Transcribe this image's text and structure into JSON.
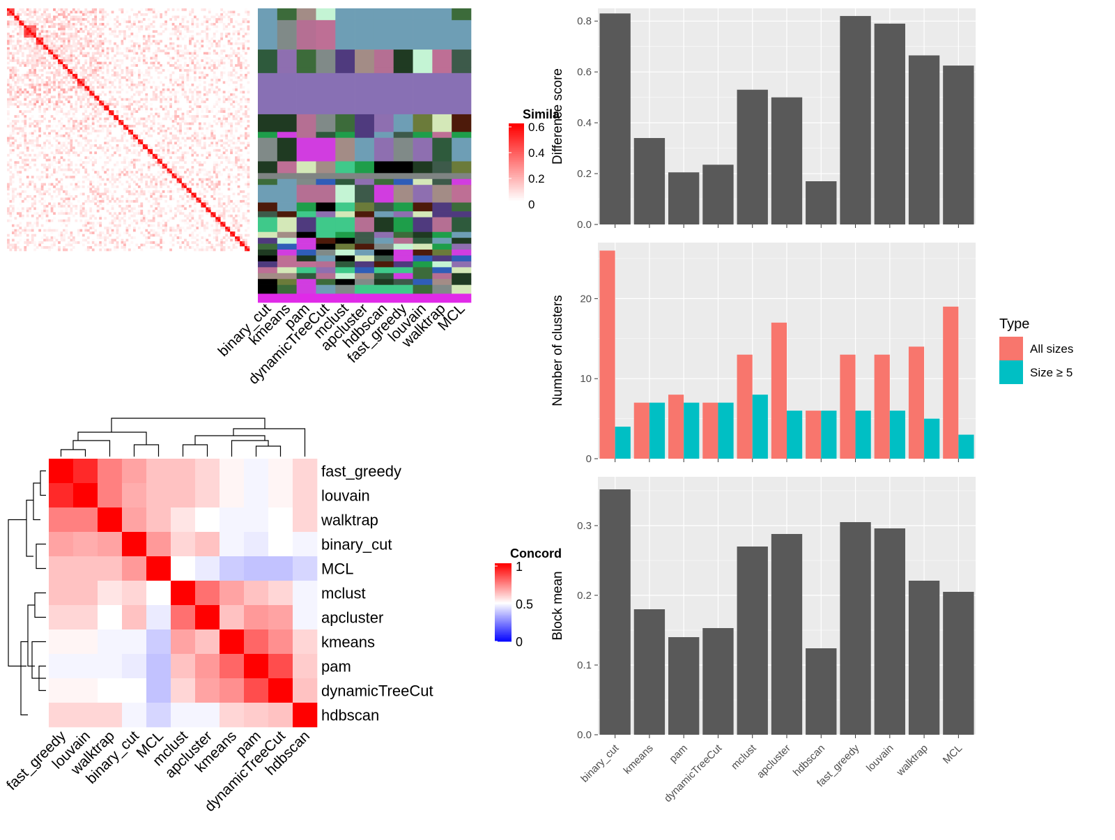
{
  "colors": {
    "bar_dark": "#595959",
    "panel_bg": "#EBEBEB",
    "grid": "#FFFFFF",
    "all_sizes": "#F8766D",
    "size_ge5": "#00BFC4",
    "heat_high": "#FF0000",
    "heat_mid": "#FFFFFF",
    "heat_low": "#0000FF"
  },
  "heatmap_top": {
    "legend_title": "Simila",
    "legend_ticks": [
      "0.6",
      "0.4",
      "0.2",
      "0"
    ],
    "column_labels": [
      "binary_cut",
      "kmeans",
      "pam",
      "dynamicTreeCut",
      "mclust",
      "apcluster",
      "hdbscan",
      "fast_greedy",
      "louvain",
      "walktrap",
      "MCL"
    ],
    "clusters": [
      1,
      1,
      1,
      2,
      2,
      3,
      3,
      4,
      4,
      4,
      4,
      4,
      5,
      5,
      5,
      6,
      6,
      7,
      7,
      8,
      8,
      9,
      9,
      10,
      10,
      11,
      11,
      12,
      12,
      13,
      13,
      13,
      14,
      14,
      15,
      15,
      16,
      16,
      17,
      17,
      18,
      18,
      19,
      19,
      20,
      20,
      21,
      21,
      22,
      22,
      23,
      23,
      24,
      24,
      25,
      25,
      26,
      26,
      27,
      27,
      28,
      28,
      29,
      29,
      30,
      30,
      31,
      31,
      32,
      32,
      33,
      33,
      34,
      34,
      35,
      35,
      36,
      36,
      37,
      37,
      38,
      38,
      39,
      39,
      40,
      40,
      41,
      41,
      42,
      42,
      43,
      43,
      44,
      44,
      45,
      45,
      46,
      46,
      47,
      47
    ]
  },
  "heatmap_bottom": {
    "legend_title": "Concord",
    "legend_ticks": [
      "1",
      "0.5",
      "0"
    ],
    "labels": [
      "fast_greedy",
      "louvain",
      "walktrap",
      "binary_cut",
      "MCL",
      "mclust",
      "apcluster",
      "kmeans",
      "pam",
      "dynamicTreeCut",
      "hdbscan"
    ],
    "matrix": [
      [
        1.0,
        0.92,
        0.75,
        0.68,
        0.62,
        0.62,
        0.58,
        0.52,
        0.48,
        0.52,
        0.58
      ],
      [
        0.92,
        1.0,
        0.75,
        0.66,
        0.62,
        0.62,
        0.58,
        0.52,
        0.48,
        0.52,
        0.58
      ],
      [
        0.75,
        0.75,
        1.0,
        0.68,
        0.62,
        0.55,
        0.5,
        0.48,
        0.48,
        0.5,
        0.58
      ],
      [
        0.68,
        0.66,
        0.68,
        1.0,
        0.7,
        0.58,
        0.62,
        0.48,
        0.46,
        0.5,
        0.48
      ],
      [
        0.62,
        0.62,
        0.62,
        0.7,
        1.0,
        0.5,
        0.46,
        0.4,
        0.38,
        0.38,
        0.42
      ],
      [
        0.62,
        0.62,
        0.55,
        0.58,
        0.5,
        1.0,
        0.78,
        0.68,
        0.62,
        0.58,
        0.48
      ],
      [
        0.58,
        0.58,
        0.5,
        0.62,
        0.46,
        0.78,
        1.0,
        0.62,
        0.7,
        0.68,
        0.48
      ],
      [
        0.52,
        0.52,
        0.48,
        0.48,
        0.4,
        0.68,
        0.62,
        1.0,
        0.8,
        0.72,
        0.58
      ],
      [
        0.48,
        0.48,
        0.48,
        0.46,
        0.38,
        0.62,
        0.7,
        0.8,
        1.0,
        0.85,
        0.6
      ],
      [
        0.52,
        0.52,
        0.5,
        0.5,
        0.38,
        0.58,
        0.68,
        0.72,
        0.85,
        1.0,
        0.62
      ],
      [
        0.58,
        0.58,
        0.58,
        0.48,
        0.42,
        0.48,
        0.48,
        0.58,
        0.6,
        0.62,
        1.0
      ]
    ]
  },
  "chart_data": [
    {
      "type": "bar",
      "categories": [
        "binary_cut",
        "kmeans",
        "pam",
        "dynamicTreeCut",
        "mclust",
        "apcluster",
        "hdbscan",
        "fast_greedy",
        "louvain",
        "walktrap",
        "MCL"
      ],
      "values": [
        0.83,
        0.34,
        0.205,
        0.235,
        0.53,
        0.5,
        0.17,
        0.82,
        0.79,
        0.665,
        0.625
      ],
      "title": "",
      "xlabel": "",
      "ylabel": "Difference score",
      "ylim": [
        0,
        0.85
      ],
      "yticks": [
        "0.0",
        "0.2",
        "0.4",
        "0.6",
        "0.8"
      ],
      "grid": true
    },
    {
      "type": "bar",
      "categories": [
        "binary_cut",
        "kmeans",
        "pam",
        "dynamicTreeCut",
        "mclust",
        "apcluster",
        "hdbscan",
        "fast_greedy",
        "louvain",
        "walktrap",
        "MCL"
      ],
      "series": [
        {
          "name": "All sizes",
          "values": [
            26,
            7,
            8,
            7,
            13,
            17,
            6,
            13,
            13,
            14,
            19
          ]
        },
        {
          "name": "Size ≥ 5",
          "values": [
            4,
            7,
            7,
            7,
            8,
            6,
            6,
            6,
            6,
            5,
            3
          ]
        }
      ],
      "title": "",
      "xlabel": "",
      "ylabel": "Number of clusters",
      "ylim": [
        0,
        27
      ],
      "yticks": [
        "0",
        "10",
        "20"
      ],
      "legend_title": "Type",
      "legend_position": "right",
      "grid": true
    },
    {
      "type": "bar",
      "categories": [
        "binary_cut",
        "kmeans",
        "pam",
        "dynamicTreeCut",
        "mclust",
        "apcluster",
        "hdbscan",
        "fast_greedy",
        "louvain",
        "walktrap",
        "MCL"
      ],
      "values": [
        0.352,
        0.18,
        0.14,
        0.153,
        0.27,
        0.288,
        0.124,
        0.305,
        0.296,
        0.221,
        0.205
      ],
      "title": "",
      "xlabel": "",
      "ylabel": "Block mean",
      "ylim": [
        0,
        0.37
      ],
      "yticks": [
        "0.0",
        "0.1",
        "0.2",
        "0.3"
      ],
      "grid": true
    }
  ]
}
